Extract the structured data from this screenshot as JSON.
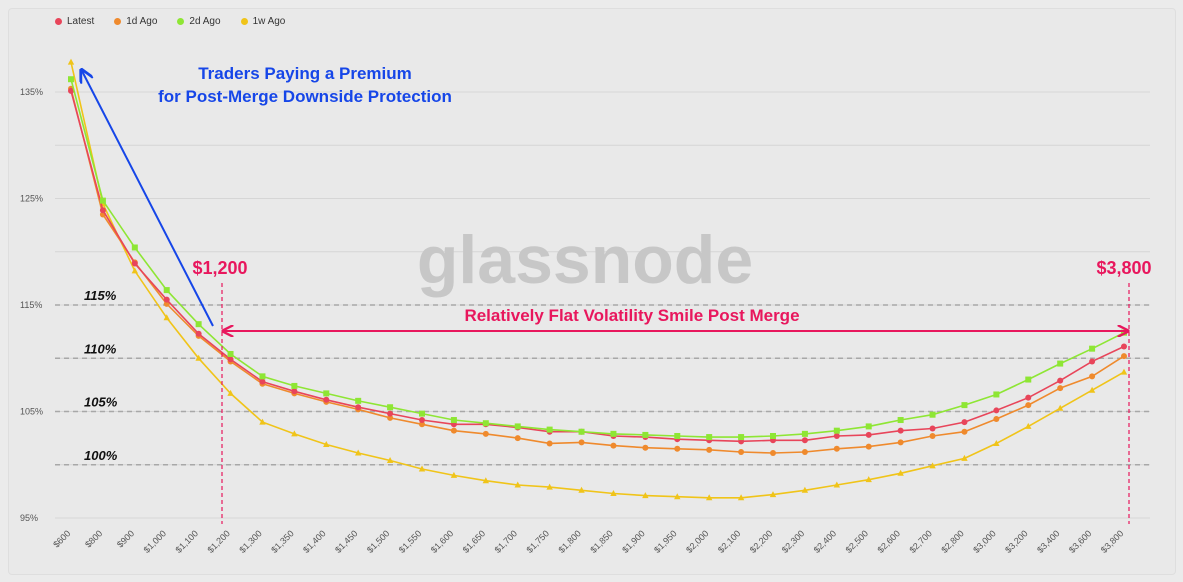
{
  "legend": [
    {
      "name": "Latest",
      "color": "#e8455a"
    },
    {
      "name": "1d Ago",
      "color": "#ef8a2d"
    },
    {
      "name": "2d Ago",
      "color": "#8ee634"
    },
    {
      "name": "1w Ago",
      "color": "#f0c419"
    }
  ],
  "watermark": "glassnode",
  "annotations": {
    "premium_line1": "Traders Paying a Premium",
    "premium_line2": "for Post-Merge Downside Protection",
    "flat_smile": "Relatively Flat Volatility Smile Post Merge",
    "strike_low": "$1,200",
    "strike_high": "$3,800",
    "ref_115": "115%",
    "ref_110": "110%",
    "ref_105": "105%",
    "ref_100": "100%"
  },
  "colors": {
    "annotation_blue": "#1646e8",
    "annotation_pink": "#e8175d",
    "grid": "#d6d6d6",
    "ref_line": "#a8a8a8"
  },
  "chart_data": {
    "type": "line",
    "categories": [
      "$600",
      "$800",
      "$900",
      "$1,000",
      "$1,100",
      "$1,200",
      "$1,300",
      "$1,350",
      "$1,400",
      "$1,450",
      "$1,500",
      "$1,550",
      "$1,600",
      "$1,650",
      "$1,700",
      "$1,750",
      "$1,800",
      "$1,850",
      "$1,900",
      "$1,950",
      "$2,000",
      "$2,100",
      "$2,200",
      "$2,300",
      "$2,400",
      "$2,500",
      "$2,600",
      "$2,700",
      "$2,800",
      "$3,000",
      "$3,200",
      "$3,400",
      "$3,600",
      "$3,800"
    ],
    "y_ticks": [
      "95%",
      "105%",
      "115%",
      "125%",
      "135%"
    ],
    "ylim": [
      94,
      137.5
    ],
    "reference_lines": [
      100,
      105,
      110,
      115
    ],
    "series": [
      {
        "name": "Latest",
        "values": [
          135.1,
          123.9,
          118.9,
          115.5,
          112.3,
          109.9,
          107.8,
          106.9,
          106.1,
          105.4,
          104.8,
          104.2,
          103.8,
          103.8,
          103.5,
          103.1,
          103.1,
          102.7,
          102.6,
          102.4,
          102.3,
          102.2,
          102.3,
          102.3,
          102.7,
          102.8,
          103.2,
          103.4,
          104.0,
          105.1,
          106.3,
          107.9,
          109.7,
          111.1
        ]
      },
      {
        "name": "1d Ago",
        "values": [
          135.3,
          123.5,
          119.0,
          115.1,
          112.1,
          109.7,
          107.6,
          106.7,
          105.9,
          105.2,
          104.4,
          103.8,
          103.2,
          102.9,
          102.5,
          102.0,
          102.1,
          101.8,
          101.6,
          101.5,
          101.4,
          101.2,
          101.1,
          101.2,
          101.5,
          101.7,
          102.1,
          102.7,
          103.1,
          104.3,
          105.6,
          107.2,
          108.3,
          110.2
        ]
      },
      {
        "name": "2d Ago",
        "values": [
          136.2,
          124.8,
          120.4,
          116.4,
          113.2,
          110.4,
          108.3,
          107.4,
          106.7,
          106.0,
          105.4,
          104.8,
          104.2,
          103.9,
          103.6,
          103.3,
          103.1,
          102.9,
          102.8,
          102.7,
          102.6,
          102.6,
          102.7,
          102.9,
          103.2,
          103.6,
          104.2,
          104.7,
          105.6,
          106.6,
          108.0,
          109.5,
          110.9,
          112.4
        ]
      },
      {
        "name": "1w Ago",
        "values": [
          137.8,
          124.5,
          118.2,
          113.8,
          110.0,
          106.7,
          104.0,
          102.9,
          101.9,
          101.1,
          100.4,
          99.6,
          99.0,
          98.5,
          98.1,
          97.9,
          97.6,
          97.3,
          97.1,
          97.0,
          96.9,
          96.9,
          97.2,
          97.6,
          98.1,
          98.6,
          99.2,
          99.9,
          100.6,
          102.0,
          103.6,
          105.3,
          107.0,
          108.7
        ]
      }
    ]
  }
}
